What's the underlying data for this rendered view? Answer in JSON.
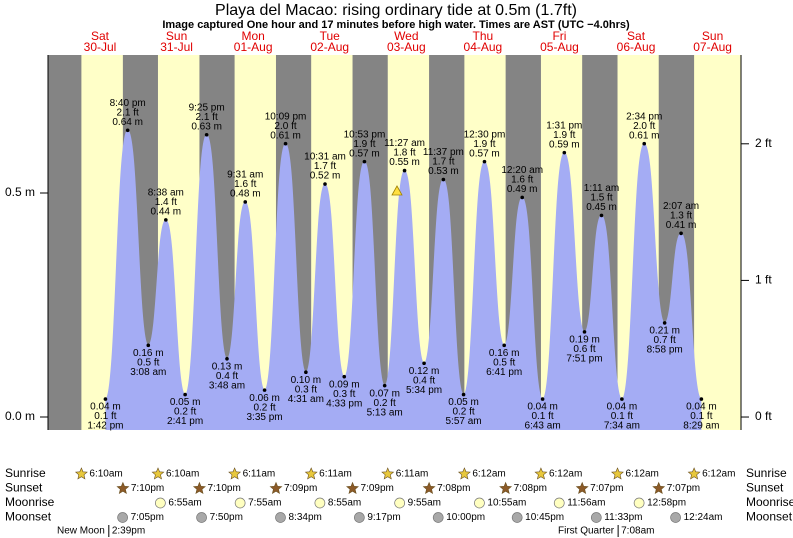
{
  "chart_data": {
    "type": "area",
    "title": "Playa del Macao: rising  ordinary tide at 0.5m (1.7ft)",
    "subtitle": "Image captured One hour and 17 minutes before high water. Times are AST (UTC −4.0hrs)",
    "days": [
      "Sat",
      "Sun",
      "Mon",
      "Tue",
      "Wed",
      "Thu",
      "Fri",
      "Sat",
      "Sun"
    ],
    "dates": [
      "30-Jul",
      "31-Jul",
      "01-Aug",
      "02-Aug",
      "03-Aug",
      "04-Aug",
      "05-Aug",
      "06-Aug",
      "07-Aug"
    ],
    "xlim": [
      -4.3,
      212.9
    ],
    "ylim": [
      -0.029,
      0.808
    ],
    "yticks": [
      {
        "value": 0,
        "label": "0.0 m"
      },
      {
        "value": 0.5,
        "label": "0.5 m"
      }
    ],
    "y2lim": [
      -0.095,
      2.65
    ],
    "y2ticks": [
      {
        "value": 0,
        "label": "0 ft"
      },
      {
        "value": 1,
        "label": "1 ft"
      },
      {
        "value": 2,
        "label": "2 ft"
      }
    ],
    "day_color": "#ffffc8",
    "night_color": "#848484",
    "tides": {
      "color": "#a4acf4",
      "x": [
        13.7,
        20.67,
        27.13,
        32.63,
        38.68,
        45.42,
        51.8,
        57.52,
        63.58,
        70.15,
        76.52,
        82.52,
        88.55,
        94.88,
        101.22,
        107.45,
        113.57,
        119.62,
        125.95,
        132.5,
        138.68,
        144.33,
        150.72,
        157.52,
        163.85,
        169.18,
        175.57,
        182.57,
        188.97,
        194.12,
        200.48
      ],
      "values": [
        0.04,
        0.64,
        0.16,
        0.44,
        0.05,
        0.63,
        0.13,
        0.48,
        0.06,
        0.61,
        0.1,
        0.52,
        0.09,
        0.57,
        0.07,
        0.55,
        0.12,
        0.53,
        0.05,
        0.57,
        0.16,
        0.49,
        0.04,
        0.59,
        0.19,
        0.45,
        0.04,
        0.61,
        0.21,
        0.41,
        0.04
      ],
      "value_labels": [
        "0.04 m",
        "0.64 m",
        "0.16 m",
        "0.44 m",
        "0.05 m",
        "0.63 m",
        "0.13 m",
        "0.48 m",
        "0.06 m",
        "0.61 m",
        "0.10 m",
        "0.52 m",
        "0.09 m",
        "0.57 m",
        "0.07 m",
        "0.55 m",
        "0.12 m",
        "0.53 m",
        "0.05 m",
        "0.57 m",
        "0.16 m",
        "0.49 m",
        "0.04 m",
        "0.59 m",
        "0.19 m",
        "0.45 m",
        "0.04 m",
        "0.61 m",
        "0.21 m",
        "0.41 m",
        "0.04 m"
      ],
      "ft_labels": [
        "0.1 ft",
        "2.1 ft",
        "0.5 ft",
        "1.4 ft",
        "0.2 ft",
        "2.1 ft",
        "0.4 ft",
        "1.6 ft",
        "0.2 ft",
        "2.0 ft",
        "0.3 ft",
        "1.7 ft",
        "0.3 ft",
        "1.9 ft",
        "0.2 ft",
        "1.8 ft",
        "0.4 ft",
        "1.7 ft",
        "0.2 ft",
        "1.9 ft",
        "0.5 ft",
        "1.6 ft",
        "0.1 ft",
        "1.9 ft",
        "0.6 ft",
        "1.5 ft",
        "0.1 ft",
        "2.0 ft",
        "0.7 ft",
        "1.3 ft",
        "0.1 ft"
      ],
      "time_labels": [
        "1:42 pm",
        "8:40 pm",
        "3:08 am",
        "8:38 am",
        "2:41 pm",
        "9:25 pm",
        "3:48 am",
        "9:31 am",
        "3:35 pm",
        "10:09 pm",
        "4:31 am",
        "10:31 am",
        "4:33 pm",
        "10:53 pm",
        "5:13 am",
        "11:27 am",
        "5:34 pm",
        "11:37 pm",
        "5:57 am",
        "12:30 pm",
        "6:41 pm",
        "12:20 am",
        "6:43 am",
        "1:31 pm",
        "7:51 pm",
        "1:11 am",
        "7:34 am",
        "2:34 pm",
        "8:58 pm",
        "2:07 am",
        "8:29 am"
      ]
    },
    "almanac": [
      {
        "label": "Sunrise",
        "icon": "star",
        "color": "#e8c83c",
        "times": [
          "6:10am",
          "6:10am",
          "6:11am",
          "6:11am",
          "6:11am",
          "6:12am",
          "6:12am",
          "6:12am",
          "6:12am"
        ]
      },
      {
        "label": "Sunset",
        "icon": "star",
        "color": "#8c5a28",
        "times": [
          "7:10pm",
          "7:10pm",
          "7:09pm",
          "7:09pm",
          "7:08pm",
          "7:08pm",
          "7:07pm",
          "7:07pm",
          null
        ]
      },
      {
        "label": "Moonrise",
        "icon": "circle",
        "color": "#ffffc0",
        "times": [
          null,
          "6:55am",
          "7:55am",
          "8:55am",
          "9:55am",
          "10:55am",
          "11:56am",
          "12:58pm",
          null
        ]
      },
      {
        "label": "Moonset",
        "icon": "circle",
        "color": "#a8a8a8",
        "times": [
          "7:05pm",
          "7:50pm",
          "8:34pm",
          "9:17pm",
          "10:00pm",
          "10:45pm",
          "11:33pm",
          null,
          "12:24am"
        ]
      }
    ],
    "moon_phases": [
      {
        "name": "New Moon",
        "time": "2:39pm"
      },
      {
        "name": "First Quarter",
        "time": "7:08am"
      }
    ]
  }
}
